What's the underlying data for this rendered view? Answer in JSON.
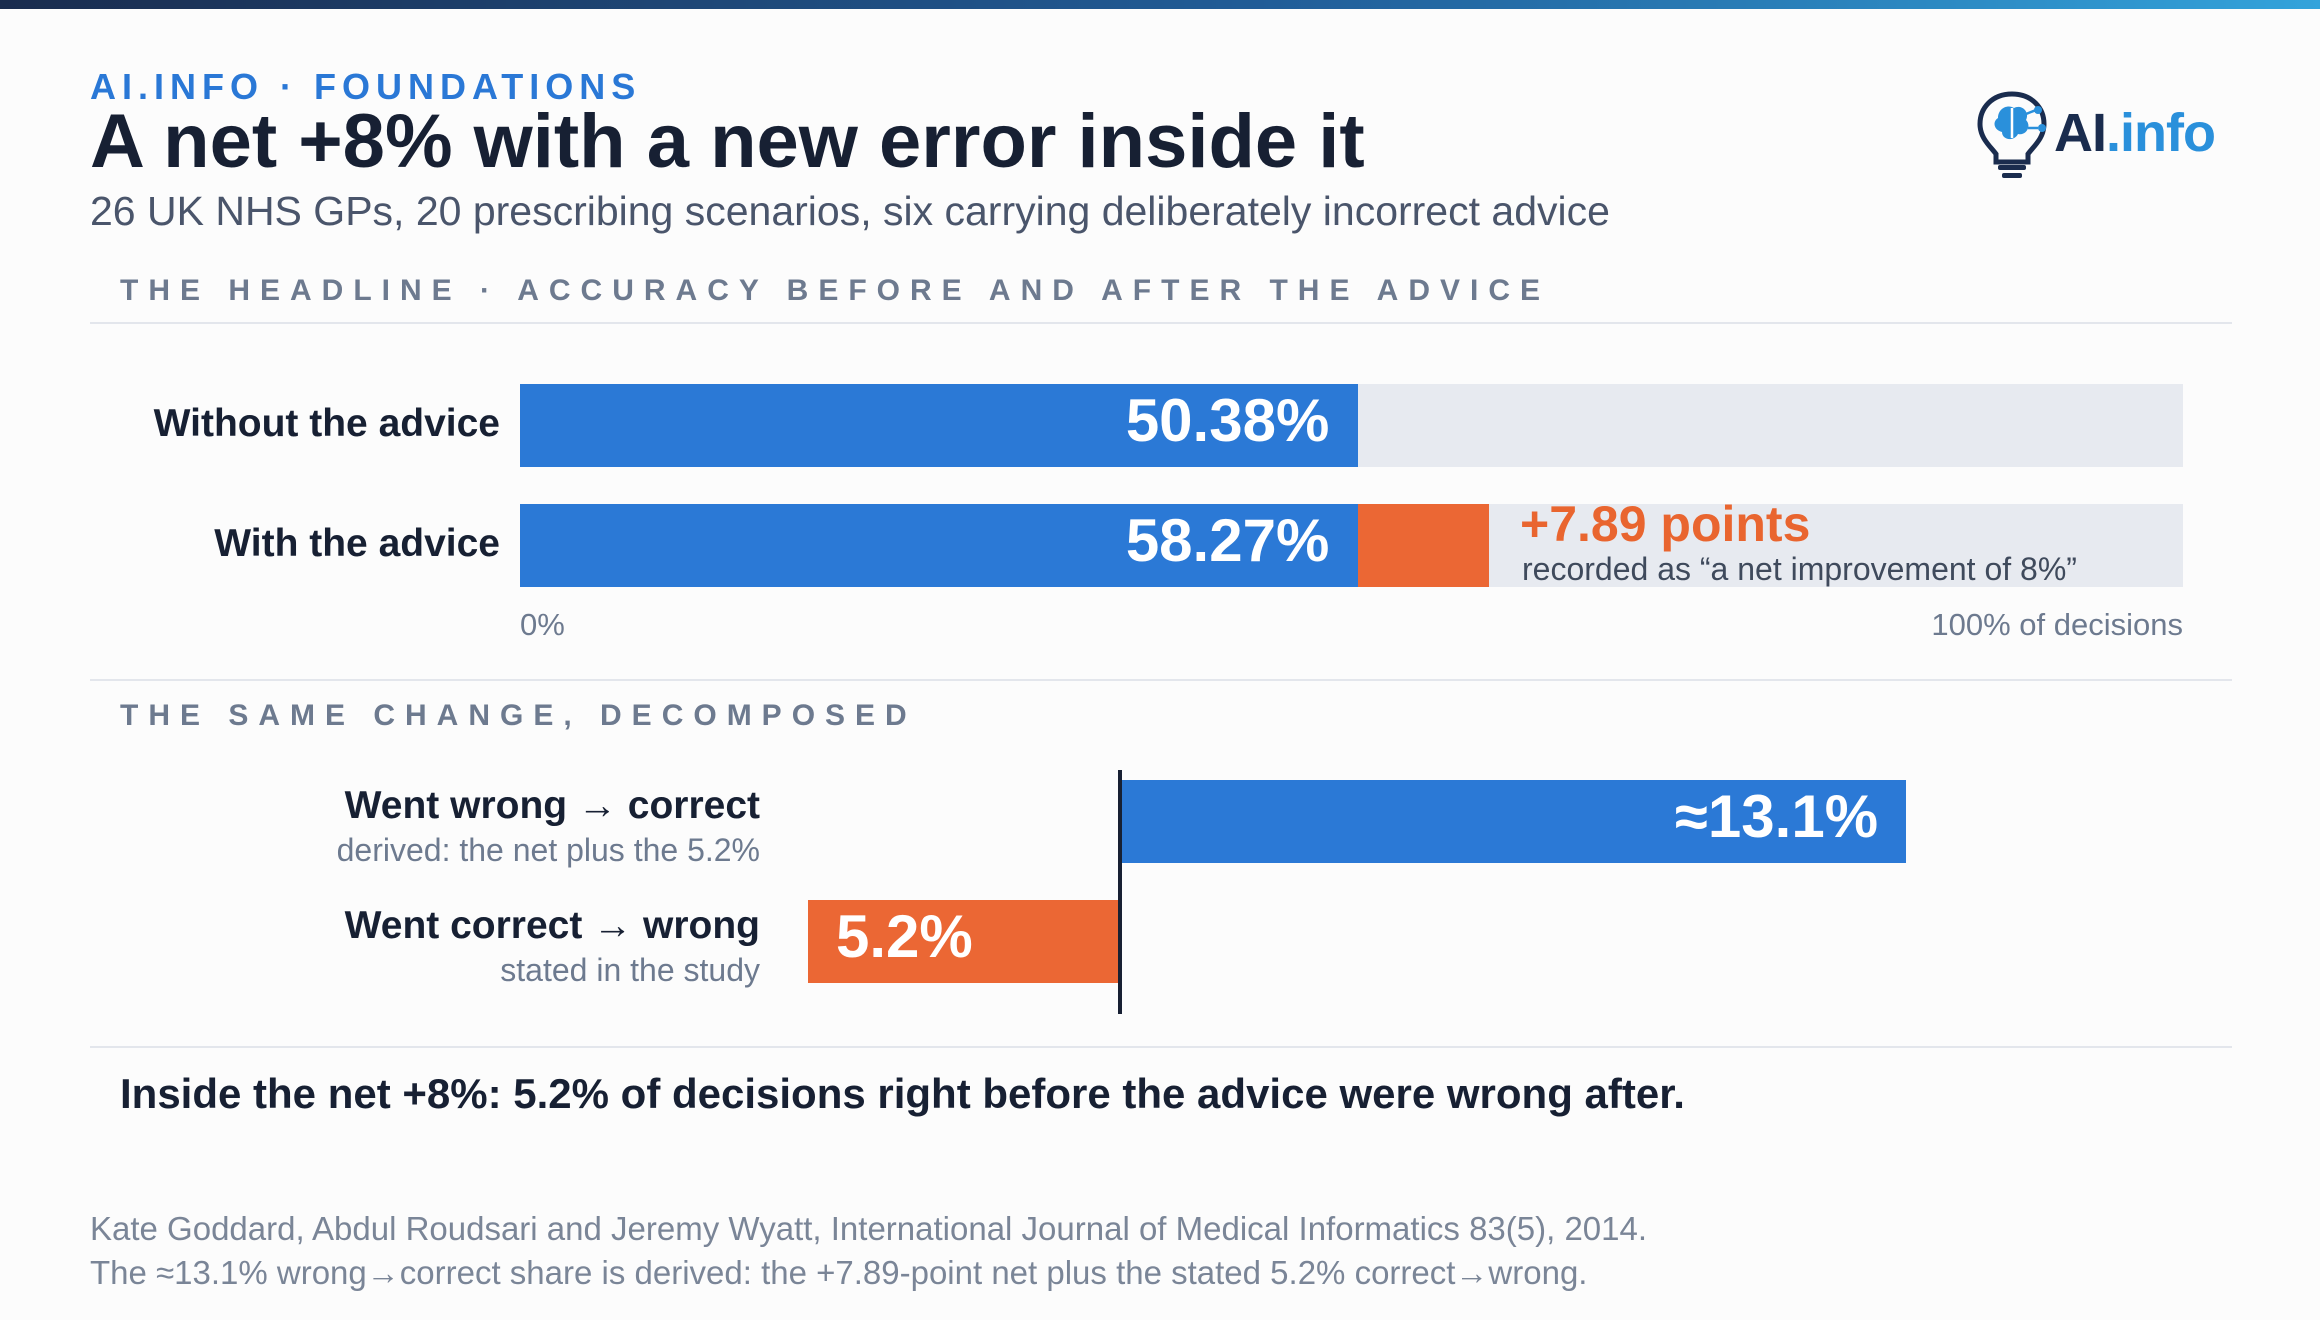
{
  "header": {
    "kicker": "AI.INFO · FOUNDATIONS",
    "title": "A net +8% with a new error inside it",
    "subtitle": "26 UK NHS GPs, 20 prescribing scenarios, six carrying deliberately incorrect advice",
    "logo_text_ai": "AI",
    "logo_text_info": ".info",
    "logo_icon": "lightbulb-brain-icon"
  },
  "colors": {
    "accent_blue": "#2b79d6",
    "accent_orange": "#eb6734",
    "track": "#e7eaf0",
    "text_dark": "#172033",
    "text_muted": "#6d7a8f"
  },
  "sections": {
    "headline_label": "THE HEADLINE · ACCURACY BEFORE AND AFTER THE ADVICE",
    "decomposed_label": "THE SAME CHANGE, DECOMPOSED"
  },
  "chart_data": [
    {
      "type": "bar",
      "orientation": "horizontal",
      "categories": [
        "Without the advice",
        "With the advice"
      ],
      "values": [
        50.38,
        58.27
      ],
      "value_labels": [
        "50.38%",
        "58.27%"
      ],
      "delta": {
        "value": 7.89,
        "label": "+7.89 points",
        "note": "recorded as “a net improvement of 8%”"
      },
      "xlim": [
        0,
        100
      ],
      "tick_labels": [
        "0%",
        "100% of decisions"
      ],
      "grid": false,
      "legend": "none"
    },
    {
      "type": "bar",
      "orientation": "horizontal-diverging",
      "categories": [
        {
          "label": "Went wrong → correct",
          "sublabel": "derived: the net plus the 5.2%",
          "value": 13.1,
          "value_label": "≈13.1%",
          "direction": "positive"
        },
        {
          "label": "Went correct → wrong",
          "sublabel": "stated in the study",
          "value": 5.2,
          "value_label": "5.2%",
          "direction": "negative"
        }
      ],
      "grid": false,
      "legend": "none"
    }
  ],
  "takeaway": "Inside the net +8%: 5.2% of decisions right before the advice were wrong after.",
  "source": {
    "line1": "Kate Goddard, Abdul Roudsari and Jeremy Wyatt, International Journal of Medical Informatics 83(5), 2014.",
    "line2": "The ≈13.1% wrong→correct share is derived: the +7.89-point net plus the stated 5.2% correct→wrong."
  }
}
